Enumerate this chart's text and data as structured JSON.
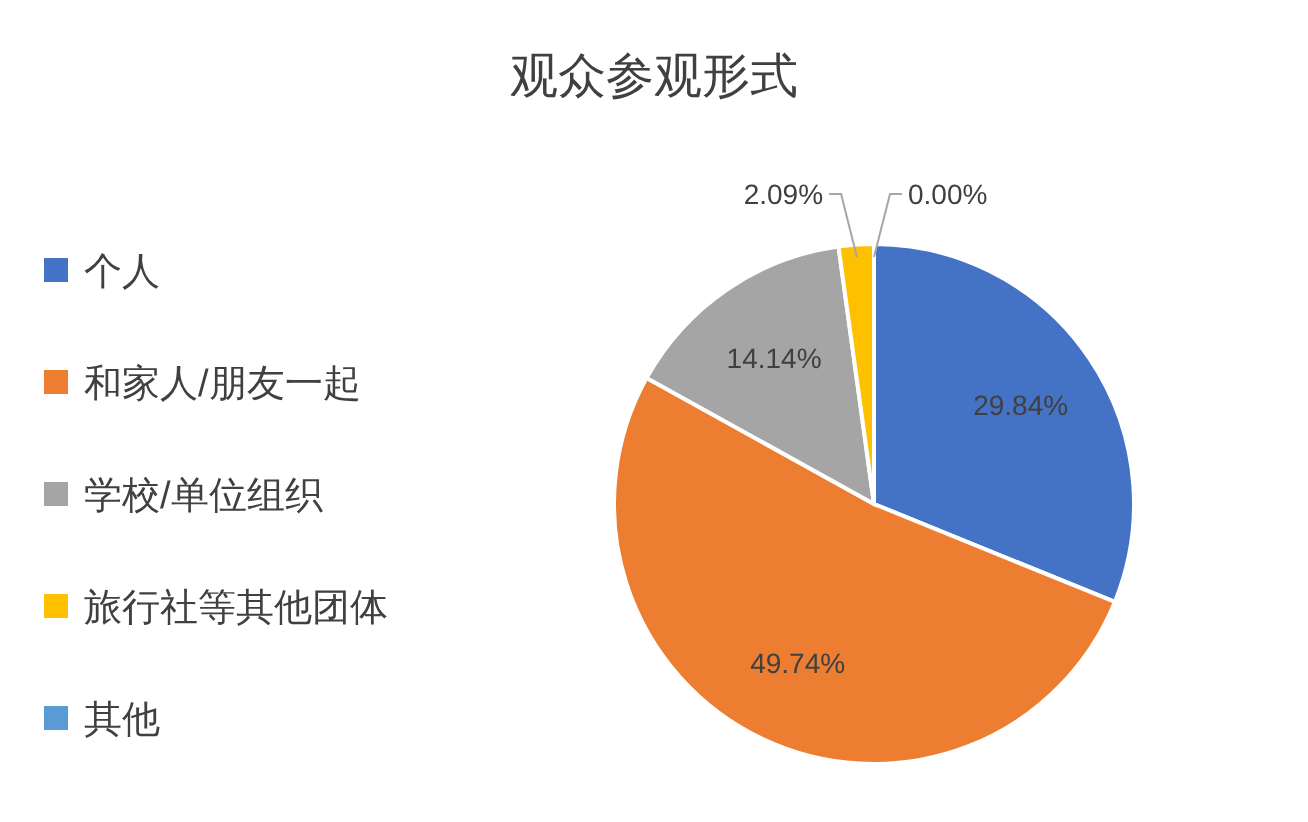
{
  "chart_data": {
    "type": "pie",
    "title": "观众参观形式",
    "categories": [
      "个人",
      "和家人/朋友一起",
      "学校/单位组织",
      "旅行社等其他团体",
      "其他"
    ],
    "values": [
      29.84,
      49.74,
      14.14,
      2.09,
      0.0
    ],
    "colors": [
      "#4472c4",
      "#ed7d31",
      "#a5a5a5",
      "#ffc000",
      "#5b9bd5"
    ],
    "value_labels": [
      "29.84%",
      "49.74%",
      "14.14%",
      "2.09%",
      "0.00%"
    ],
    "legend": "left"
  }
}
